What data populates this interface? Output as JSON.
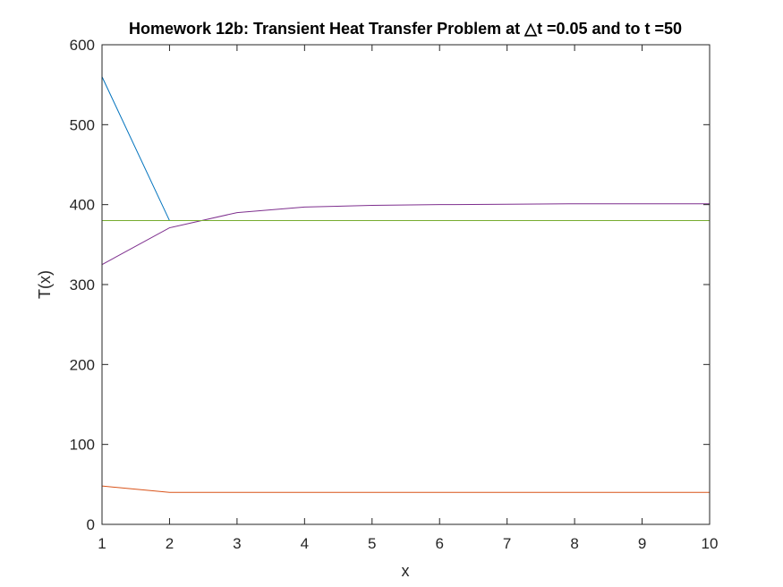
{
  "chart_data": {
    "type": "line",
    "title": "Homework 12b: Transient Heat Transfer Problem at △t =0.05 and to t =50",
    "xlabel": "x",
    "ylabel": "T(x)",
    "xlim": [
      1,
      10
    ],
    "ylim": [
      0,
      600
    ],
    "x_ticks": [
      "1",
      "2",
      "3",
      "4",
      "5",
      "6",
      "7",
      "8",
      "9",
      "10"
    ],
    "y_ticks": [
      "0",
      "100",
      "200",
      "300",
      "400",
      "500",
      "600"
    ],
    "grid": false,
    "legend": "none",
    "x": [
      1,
      2,
      3,
      4,
      5,
      6,
      7,
      8,
      9,
      10
    ],
    "series": [
      {
        "color": "#0072BD",
        "values": [
          560,
          380,
          380,
          380,
          380,
          380,
          380,
          380,
          380,
          380
        ]
      },
      {
        "color": "#D95319",
        "values": [
          48,
          40,
          40,
          40,
          40,
          40,
          40,
          40,
          40,
          40
        ]
      },
      {
        "color": "#EDB120",
        "values": [
          380,
          380,
          380,
          380,
          380,
          380,
          380,
          380,
          380,
          380
        ]
      },
      {
        "color": "#7E2F8E",
        "values": [
          325,
          371,
          390,
          397,
          399,
          400,
          400.5,
          401,
          401,
          401
        ]
      },
      {
        "color": "#77AC30",
        "values": [
          380,
          380,
          380,
          380,
          380,
          380,
          380,
          380,
          380,
          380
        ]
      }
    ]
  }
}
